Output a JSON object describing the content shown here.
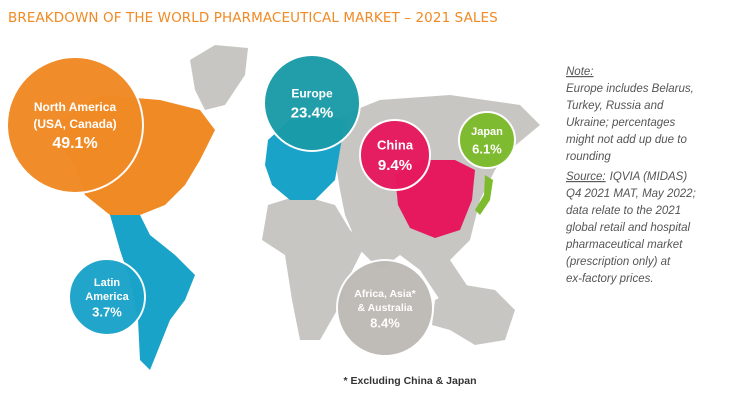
{
  "header": {
    "title": "BREAKDOWN OF THE WORLD PHARMACEUTICAL MARKET – 2021 SALES"
  },
  "regions": [
    {
      "lines": [
        "North America",
        "(USA, Canada)"
      ],
      "value": "49.1%",
      "color": "#f08a24"
    },
    {
      "lines": [
        "Europe"
      ],
      "value": "23.4%",
      "color": "#1a9ba8"
    },
    {
      "lines": [
        "China"
      ],
      "value": "9.4%",
      "color": "#e6195f"
    },
    {
      "lines": [
        "Japan"
      ],
      "value": "6.1%",
      "color": "#7dbb2c"
    },
    {
      "lines": [
        "Latin",
        "America"
      ],
      "value": "3.7%",
      "color": "#1aa3c9"
    },
    {
      "lines": [
        "Africa, Asia*",
        "& Australia"
      ],
      "value": "8.4%",
      "color": "#bdb9b4"
    }
  ],
  "note": {
    "heading": "Note:",
    "lines": [
      "Europe includes Belarus,",
      "Turkey, Russia and",
      "Ukraine; percentages",
      "might not add up due to",
      "rounding"
    ]
  },
  "source": {
    "heading": "Source:",
    "lines": [
      "IQVIA (MIDAS)",
      "Q4 2021 MAT, May 2022;",
      "data relate to the 2021",
      "global retail and hospital",
      "pharmaceutical market",
      "(prescription only) at",
      "ex-factory prices."
    ]
  },
  "footnote": "* Excluding China & Japan"
}
